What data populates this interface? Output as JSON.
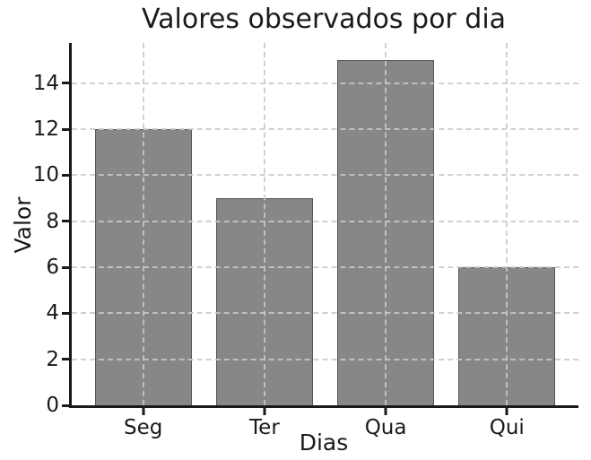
{
  "chart_data": {
    "type": "bar",
    "title": "Valores observados por dia",
    "xlabel": "Dias",
    "ylabel": "Valor",
    "categories": [
      "Seg",
      "Ter",
      "Qua",
      "Qui"
    ],
    "values": [
      12,
      9,
      15,
      6
    ],
    "yticks": [
      0,
      2,
      4,
      6,
      8,
      10,
      12,
      14
    ],
    "ylim": [
      0,
      15.75
    ],
    "xlim": [
      -0.59,
      3.59
    ],
    "bar_width": 0.8,
    "grid": {
      "horizontal": true,
      "vertical": true,
      "style": "dashed",
      "above_bars": true
    },
    "legend": "none",
    "colors": {
      "background": "#ffffff",
      "bar_fill": "#878787",
      "bar_edge": "#565656",
      "grid": "#c9c9c9",
      "axis": "#1a1a1a",
      "text": "#1a1a1a"
    }
  }
}
